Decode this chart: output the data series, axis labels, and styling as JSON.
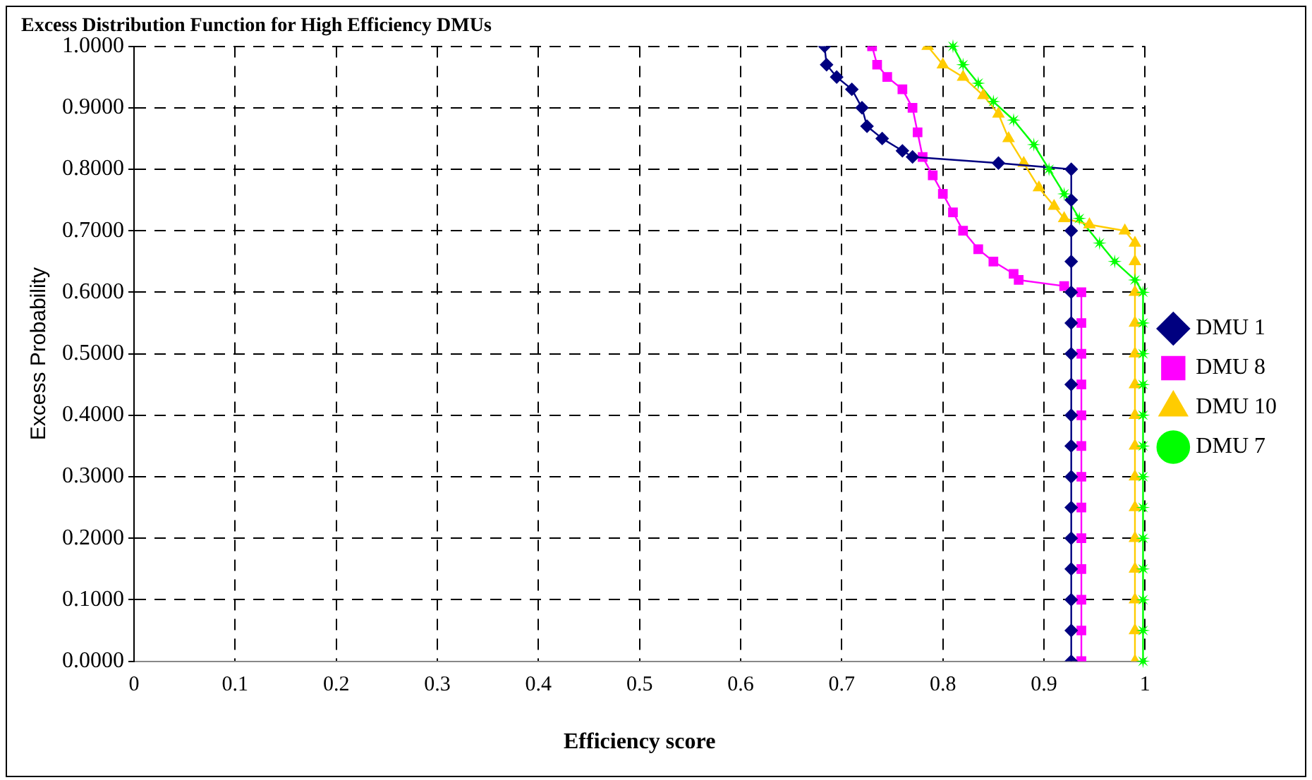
{
  "chart_data": {
    "type": "line",
    "title": "Excess Distribution Function for High Efficiency DMUs",
    "xlabel": "Efficiency score",
    "ylabel": "Excess Probability",
    "xlim": [
      0,
      1
    ],
    "ylim": [
      0,
      1
    ],
    "xticks": [
      0,
      0.1,
      0.2,
      0.3,
      0.4,
      0.5,
      0.6,
      0.7,
      0.8,
      0.9,
      1
    ],
    "yticks": [
      {
        "value": 0,
        "label": "0.0000"
      },
      {
        "value": 0.1,
        "label": "0.1000"
      },
      {
        "value": 0.2,
        "label": "0.2000"
      },
      {
        "value": 0.3,
        "label": "0.3000"
      },
      {
        "value": 0.4,
        "label": "0.4000"
      },
      {
        "value": 0.5,
        "label": "0.5000"
      },
      {
        "value": 0.6,
        "label": "0.6000"
      },
      {
        "value": 0.7,
        "label": "0.7000"
      },
      {
        "value": 0.8,
        "label": "0.8000"
      },
      {
        "value": 0.9,
        "label": "0.9000"
      },
      {
        "value": 1,
        "label": "1.0000"
      }
    ],
    "grid": true,
    "legend": "right",
    "line_style": "solid",
    "series": [
      {
        "name": "DMU 1",
        "color": "#000080",
        "marker": "diamond",
        "x": [
          0.683,
          0.685,
          0.695,
          0.71,
          0.72,
          0.725,
          0.74,
          0.76,
          0.77,
          0.855,
          0.927,
          0.927,
          0.927,
          0.927,
          0.927,
          0.927,
          0.927,
          0.927,
          0.927,
          0.927,
          0.927,
          0.927,
          0.927,
          0.927,
          0.927,
          0.927,
          0.927
        ],
        "values": [
          1.0,
          0.97,
          0.95,
          0.93,
          0.9,
          0.87,
          0.85,
          0.83,
          0.82,
          0.81,
          0.8,
          0.75,
          0.7,
          0.65,
          0.6,
          0.55,
          0.5,
          0.45,
          0.4,
          0.35,
          0.3,
          0.25,
          0.2,
          0.15,
          0.1,
          0.05,
          0.0
        ]
      },
      {
        "name": "DMU 8",
        "color": "#ff00ff",
        "marker": "square",
        "x": [
          0.73,
          0.735,
          0.745,
          0.76,
          0.77,
          0.775,
          0.78,
          0.79,
          0.8,
          0.81,
          0.82,
          0.835,
          0.85,
          0.87,
          0.875,
          0.92,
          0.937,
          0.937,
          0.937,
          0.937,
          0.937,
          0.937,
          0.937,
          0.937,
          0.937,
          0.937,
          0.937,
          0.937,
          0.937,
          0.937
        ],
        "values": [
          1.0,
          0.97,
          0.95,
          0.93,
          0.9,
          0.86,
          0.82,
          0.79,
          0.76,
          0.73,
          0.7,
          0.67,
          0.65,
          0.63,
          0.62,
          0.61,
          0.6,
          0.55,
          0.5,
          0.45,
          0.4,
          0.35,
          0.3,
          0.25,
          0.2,
          0.15,
          0.1,
          0.05,
          0.0,
          0.0
        ]
      },
      {
        "name": "DMU 10",
        "color": "#ffcc00",
        "marker": "triangle",
        "x": [
          0.785,
          0.8,
          0.82,
          0.84,
          0.855,
          0.865,
          0.88,
          0.895,
          0.91,
          0.92,
          0.945,
          0.98,
          0.99,
          0.99,
          0.99,
          0.99,
          0.99,
          0.99,
          0.99,
          0.99,
          0.99,
          0.99,
          0.99,
          0.99,
          0.99,
          0.99,
          0.99
        ],
        "values": [
          1.0,
          0.97,
          0.95,
          0.92,
          0.89,
          0.85,
          0.81,
          0.77,
          0.74,
          0.72,
          0.71,
          0.7,
          0.68,
          0.65,
          0.6,
          0.55,
          0.5,
          0.45,
          0.4,
          0.35,
          0.3,
          0.25,
          0.2,
          0.15,
          0.1,
          0.05,
          0.0
        ]
      },
      {
        "name": "DMU 7",
        "color": "#00ff00",
        "marker": "star",
        "x": [
          0.81,
          0.82,
          0.835,
          0.85,
          0.87,
          0.89,
          0.905,
          0.92,
          0.935,
          0.955,
          0.97,
          0.99,
          0.998,
          0.998,
          0.998,
          0.998,
          0.998,
          0.998,
          0.998,
          0.998,
          0.998,
          0.998,
          0.998,
          0.998,
          0.998
        ],
        "values": [
          1.0,
          0.97,
          0.94,
          0.91,
          0.88,
          0.84,
          0.8,
          0.76,
          0.72,
          0.68,
          0.65,
          0.62,
          0.6,
          0.55,
          0.5,
          0.45,
          0.4,
          0.35,
          0.3,
          0.25,
          0.2,
          0.15,
          0.1,
          0.05,
          0.0
        ]
      }
    ]
  }
}
